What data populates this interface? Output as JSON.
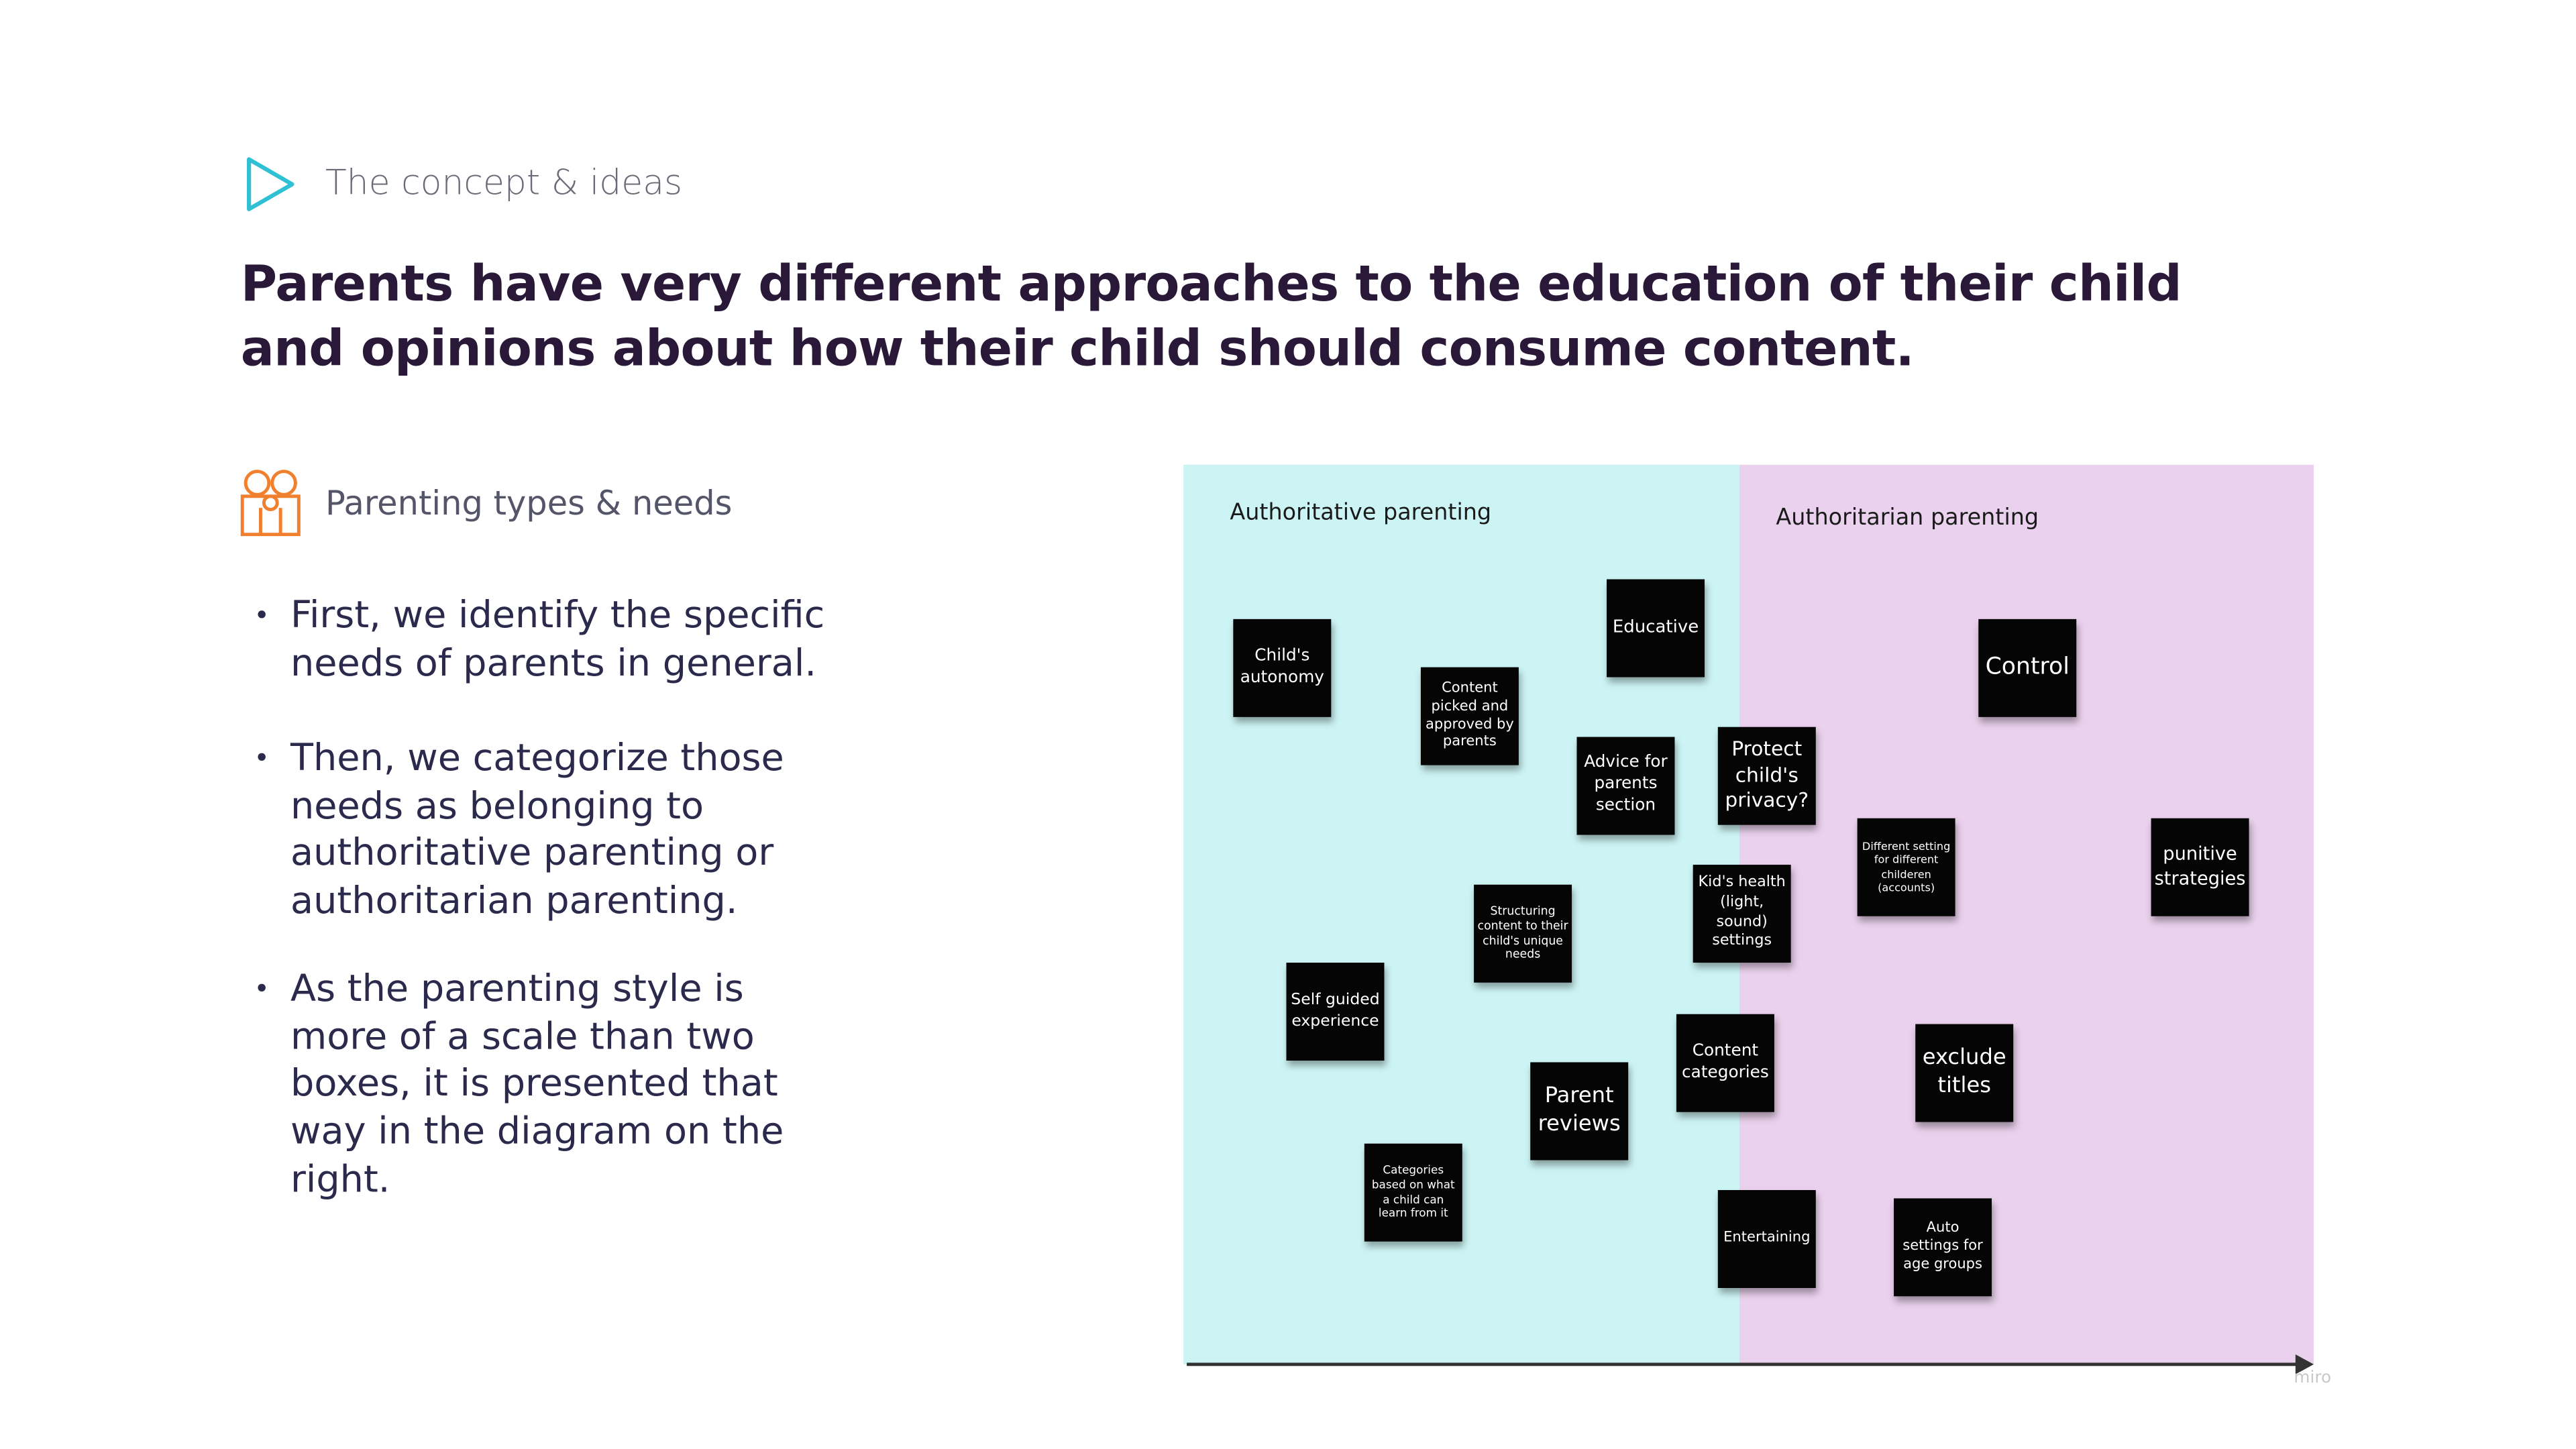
{
  "header": {
    "section": "The concept & ideas",
    "title": "Parents have very different approaches to the education of their child and opinions about how their child should consume content."
  },
  "subsection": {
    "title": "Parenting types & needs"
  },
  "bullets": [
    "First, we identify the specific needs of parents in general.",
    "Then, we categorize those needs as belonging to authoritative parenting or authoritarian parenting.",
    "As the parenting style is more of a scale than two boxes, it is presented that way in the diagram on the right."
  ],
  "board": {
    "zones": [
      "Authoritative parenting",
      "Authoritarian parenting"
    ],
    "notes": [
      "Child's autonomy",
      "Content picked and approved by parents",
      "Educative",
      "Advice for parents section",
      "Protect child's privacy?",
      "Control",
      "Different setting for different childeren (accounts)",
      "punitive strategies",
      "Structuring content to their child's unique needs",
      "Kid's health (light, sound) settings",
      "Self guided experience",
      "Content categories",
      "exclude titles",
      "Parent reviews",
      "Categories based on what a child can learn from it",
      "Entertaining",
      "Auto settings for age groups"
    ],
    "watermark": "miro"
  }
}
